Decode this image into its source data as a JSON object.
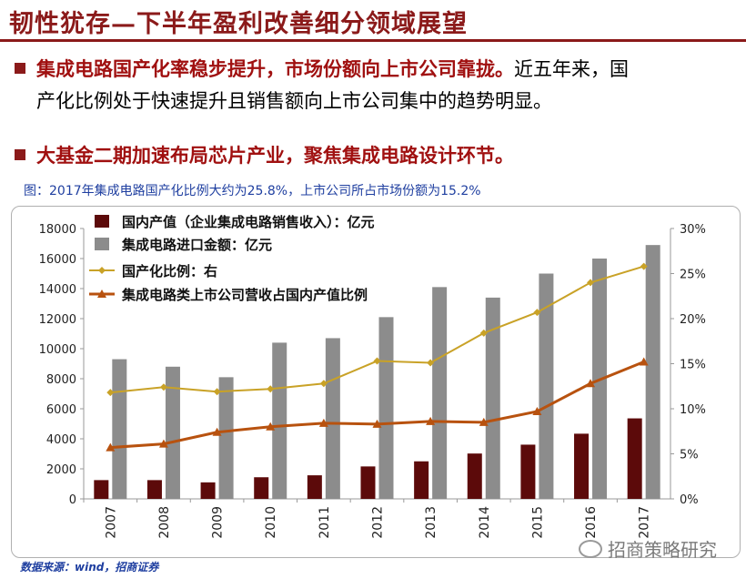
{
  "page": {
    "title": "韧性犹存—下半年盈利改善细分领域展望",
    "bullet1_red": "集成电路国产化率稳步提升，市场份额向上市公司靠拢。",
    "bullet1_black_line1": "近五年来，国",
    "bullet1_black_line2": "产化比例处于快速提升且销售额向上市公司集中的趋势明显。",
    "bullet2_red": "大基金二期加速布局芯片产业，聚焦集成电路设计环节。",
    "caption": "图：2017年集成电路国产化比例大约为25.8%，上市公司所占市场份额为15.2%",
    "source": "数据来源：wind，招商证券",
    "watermark": "招商策略研究"
  },
  "chart_data": {
    "type": "bar",
    "categories": [
      "2007",
      "2008",
      "2009",
      "2010",
      "2011",
      "2012",
      "2013",
      "2014",
      "2015",
      "2016",
      "2017"
    ],
    "y_left": {
      "ylim": [
        0,
        18000
      ],
      "ticks": [
        "0",
        "2000",
        "4000",
        "6000",
        "8000",
        "10000",
        "12000",
        "14000",
        "16000",
        "18000"
      ]
    },
    "y_right": {
      "ylim": [
        0,
        30
      ],
      "ticks": [
        "0%",
        "5%",
        "10%",
        "15%",
        "20%",
        "25%",
        "30%"
      ]
    },
    "series": [
      {
        "name": "国内产值（企业集成电路销售收入）：亿元",
        "kind": "bar",
        "axis": "left",
        "color": "#5c0a0a",
        "values": [
          1250,
          1250,
          1100,
          1440,
          1570,
          2160,
          2500,
          3020,
          3610,
          4340,
          5360
        ]
      },
      {
        "name": "集成电路进口金额：亿元",
        "kind": "bar",
        "axis": "left",
        "color": "#8c8c8c",
        "values": [
          9300,
          8800,
          8100,
          10400,
          10700,
          12100,
          14100,
          13400,
          15000,
          16000,
          16900
        ]
      },
      {
        "name": "国产化比例：右",
        "kind": "line",
        "axis": "right",
        "color": "#c9a227",
        "marker": "diamond",
        "values": [
          11.8,
          12.4,
          11.9,
          12.2,
          12.8,
          15.3,
          15.1,
          18.4,
          20.7,
          24.0,
          25.8
        ]
      },
      {
        "name": "集成电路类上市公司营收占国内产值比例",
        "kind": "line",
        "axis": "right",
        "color": "#b8520f",
        "marker": "triangle",
        "values": [
          5.7,
          6.1,
          7.4,
          8.0,
          8.4,
          8.3,
          8.6,
          8.5,
          9.7,
          12.8,
          15.2
        ]
      }
    ],
    "legend_position": "top-left",
    "grid": false
  }
}
